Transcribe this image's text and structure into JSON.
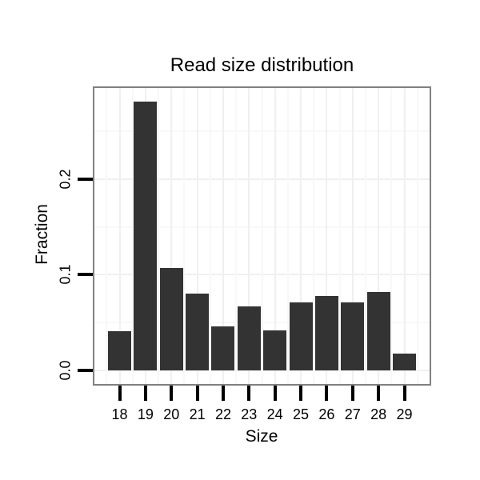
{
  "chart_data": {
    "type": "bar",
    "title": "Read size distribution",
    "xlabel": "Size",
    "ylabel": "Fraction",
    "categories": [
      "18",
      "19",
      "20",
      "21",
      "22",
      "23",
      "24",
      "25",
      "26",
      "27",
      "28",
      "29"
    ],
    "values": [
      0.041,
      0.281,
      0.107,
      0.08,
      0.046,
      0.067,
      0.042,
      0.071,
      0.078,
      0.071,
      0.082,
      0.018
    ],
    "ylim": [
      -0.014,
      0.295
    ],
    "yticks": {
      "values": [
        0.0,
        0.1,
        0.2
      ],
      "labels": [
        "0.0",
        "0.1",
        "0.2"
      ]
    },
    "yticks_minor": [
      0.05,
      0.15,
      0.25
    ],
    "grid": true,
    "legend": "none",
    "colors": {
      "bar": "#333333",
      "panel_border": "#808080",
      "grid_major": "#f0f0f0",
      "grid_minor": "#f8f8f8",
      "tick": "#000000",
      "text": "#000000",
      "background": "#ffffff"
    }
  }
}
